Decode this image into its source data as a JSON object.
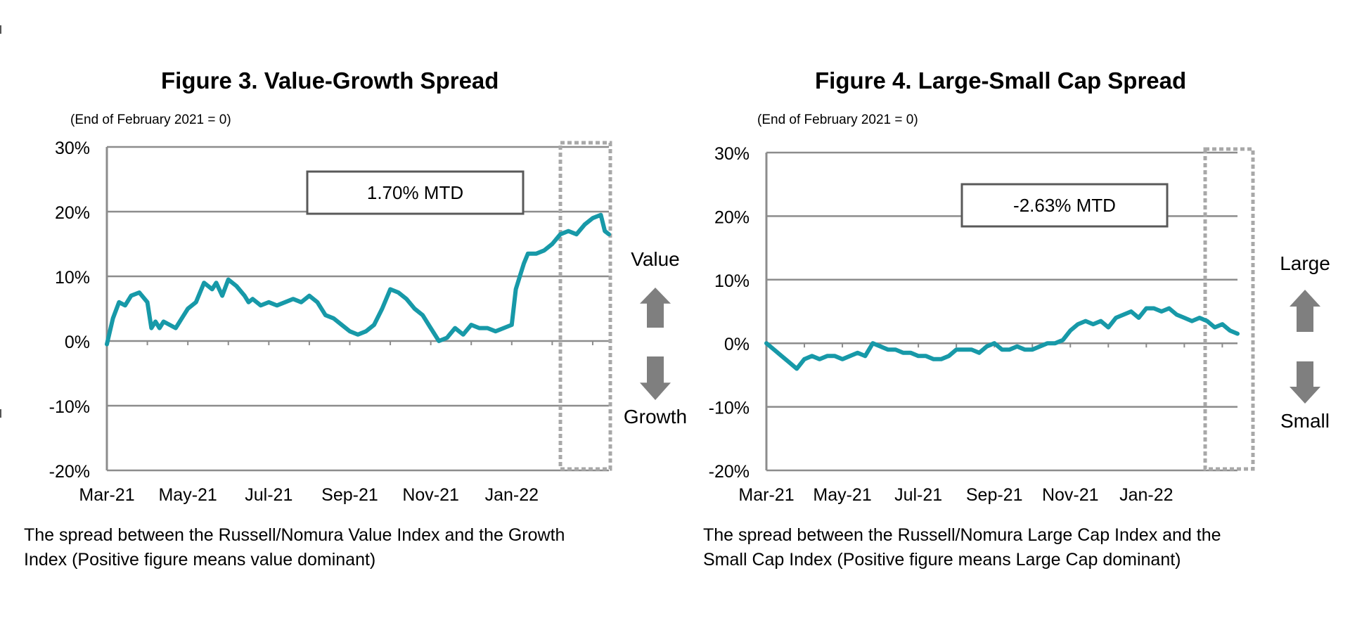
{
  "colors": {
    "series": "#1799A8",
    "grid": "#8C8C8C",
    "dash": "#A8A8A8",
    "arrow": "#7F7F7F",
    "axis": "#555555"
  },
  "figures": [
    {
      "title": "Figure 3. Value-Growth Spread",
      "base_note": "(End of February 2021 = 0)",
      "mtd_label": "1.70% MTD",
      "direction_up_label": "Value",
      "direction_down_label": "Growth",
      "caption_line1": "The spread between the Russell/Nomura Value Index and the Growth",
      "caption_line2": "Index (Positive figure means value dominant)",
      "chart_data": {
        "type": "line",
        "title": "Figure 3. Value-Growth Spread",
        "ylabel": "",
        "xlabel": "",
        "ylim": [
          -20,
          30
        ],
        "yticks": [
          30,
          20,
          10,
          0,
          -10,
          -20
        ],
        "ytick_labels": [
          "30%",
          "20%",
          "10%",
          "0%",
          "-10%",
          "-20%"
        ],
        "xlim": [
          0,
          12.4
        ],
        "xticks": [
          0,
          2,
          4,
          6,
          8,
          10
        ],
        "xtick_labels": [
          "Mar-21",
          "May-21",
          "Jul-21",
          "Sep-21",
          "Nov-21",
          "Jan-22"
        ],
        "highlight_range": [
          11.0,
          12.4
        ],
        "series": [
          {
            "name": "Value-Growth Spread",
            "x": [
              0,
              0.15,
              0.3,
              0.45,
              0.6,
              0.8,
              1.0,
              1.1,
              1.2,
              1.3,
              1.4,
              1.55,
              1.7,
              1.85,
              2.0,
              2.2,
              2.4,
              2.6,
              2.7,
              2.85,
              3.0,
              3.2,
              3.4,
              3.5,
              3.6,
              3.8,
              4.0,
              4.2,
              4.4,
              4.6,
              4.8,
              5.0,
              5.2,
              5.4,
              5.6,
              5.8,
              6.0,
              6.2,
              6.4,
              6.6,
              6.8,
              7.0,
              7.2,
              7.4,
              7.6,
              7.8,
              8.0,
              8.2,
              8.4,
              8.6,
              8.8,
              9.0,
              9.2,
              9.4,
              9.6,
              9.8,
              10.0,
              10.1,
              10.2,
              10.3,
              10.4,
              10.6,
              10.8,
              11.0,
              11.2,
              11.4,
              11.6,
              11.8,
              12.0,
              12.2,
              12.3,
              12.4
            ],
            "values": [
              -0.5,
              3.5,
              6.0,
              5.5,
              7.0,
              7.5,
              6.0,
              2.0,
              3.0,
              2.0,
              3.0,
              2.5,
              2.0,
              3.5,
              5.0,
              6.0,
              9.0,
              8.0,
              9.0,
              7.0,
              9.5,
              8.5,
              7.0,
              6.0,
              6.5,
              5.5,
              6.0,
              5.5,
              6.0,
              6.5,
              6.0,
              7.0,
              6.0,
              4.0,
              3.5,
              2.5,
              1.5,
              1.0,
              1.5,
              2.5,
              5.0,
              8.0,
              7.5,
              6.5,
              5.0,
              4.0,
              2.0,
              0.0,
              0.5,
              2.0,
              1.0,
              2.5,
              2.0,
              2.0,
              1.5,
              2.0,
              2.5,
              8.0,
              10.0,
              12.0,
              13.5,
              13.5,
              14.0,
              15.0,
              16.5,
              17.0,
              16.5,
              18.0,
              19.0,
              19.5,
              17.0,
              16.5
            ]
          }
        ]
      }
    },
    {
      "title": "Figure 4. Large-Small Cap Spread",
      "base_note": "(End of February 2021 = 0)",
      "mtd_label": "-2.63% MTD",
      "direction_up_label": "Large",
      "direction_down_label": "Small",
      "caption_line1": "The spread between the Russell/Nomura Large Cap Index and the",
      "caption_line2": "Small Cap Index (Positive figure means Large Cap dominant)",
      "chart_data": {
        "type": "line",
        "title": "Figure 4. Large-Small Cap Spread",
        "ylabel": "",
        "xlabel": "",
        "ylim": [
          -20,
          30
        ],
        "yticks": [
          30,
          20,
          10,
          0,
          -10,
          -20
        ],
        "ytick_labels": [
          "30%",
          "20%",
          "10%",
          "0%",
          "-10%",
          "-20%"
        ],
        "xlim": [
          0,
          12.4
        ],
        "xticks": [
          0,
          2,
          4,
          6,
          8,
          10
        ],
        "xtick_labels": [
          "Mar-21",
          "May-21",
          "Jul-21",
          "Sep-21",
          "Nov-21",
          "Jan-22"
        ],
        "highlight_range": [
          11.2,
          12.4
        ],
        "series": [
          {
            "name": "Large-Small Cap Spread",
            "x": [
              0,
              0.2,
              0.4,
              0.6,
              0.8,
              1.0,
              1.2,
              1.4,
              1.6,
              1.8,
              2.0,
              2.2,
              2.4,
              2.6,
              2.8,
              3.0,
              3.2,
              3.4,
              3.6,
              3.8,
              4.0,
              4.2,
              4.4,
              4.6,
              4.8,
              5.0,
              5.2,
              5.4,
              5.6,
              5.8,
              6.0,
              6.2,
              6.4,
              6.6,
              6.8,
              7.0,
              7.2,
              7.4,
              7.6,
              7.8,
              8.0,
              8.2,
              8.4,
              8.6,
              8.8,
              9.0,
              9.2,
              9.4,
              9.6,
              9.8,
              10.0,
              10.2,
              10.4,
              10.6,
              10.8,
              11.0,
              11.2,
              11.4,
              11.6,
              11.8,
              12.0,
              12.2,
              12.4
            ],
            "values": [
              0.0,
              -1.0,
              -2.0,
              -3.0,
              -4.0,
              -2.5,
              -2.0,
              -2.5,
              -2.0,
              -2.0,
              -2.5,
              -2.0,
              -1.5,
              -2.0,
              0.0,
              -0.5,
              -1.0,
              -1.0,
              -1.5,
              -1.5,
              -2.0,
              -2.0,
              -2.5,
              -2.5,
              -2.0,
              -1.0,
              -1.0,
              -1.0,
              -1.5,
              -0.5,
              0.0,
              -1.0,
              -1.0,
              -0.5,
              -1.0,
              -1.0,
              -0.5,
              0.0,
              0.0,
              0.5,
              2.0,
              3.0,
              3.5,
              3.0,
              3.5,
              2.5,
              4.0,
              4.5,
              5.0,
              4.0,
              5.5,
              5.5,
              5.0,
              5.5,
              4.5,
              4.0,
              3.5,
              4.0,
              3.5,
              2.5,
              3.0,
              2.0,
              1.5
            ]
          }
        ]
      }
    }
  ]
}
